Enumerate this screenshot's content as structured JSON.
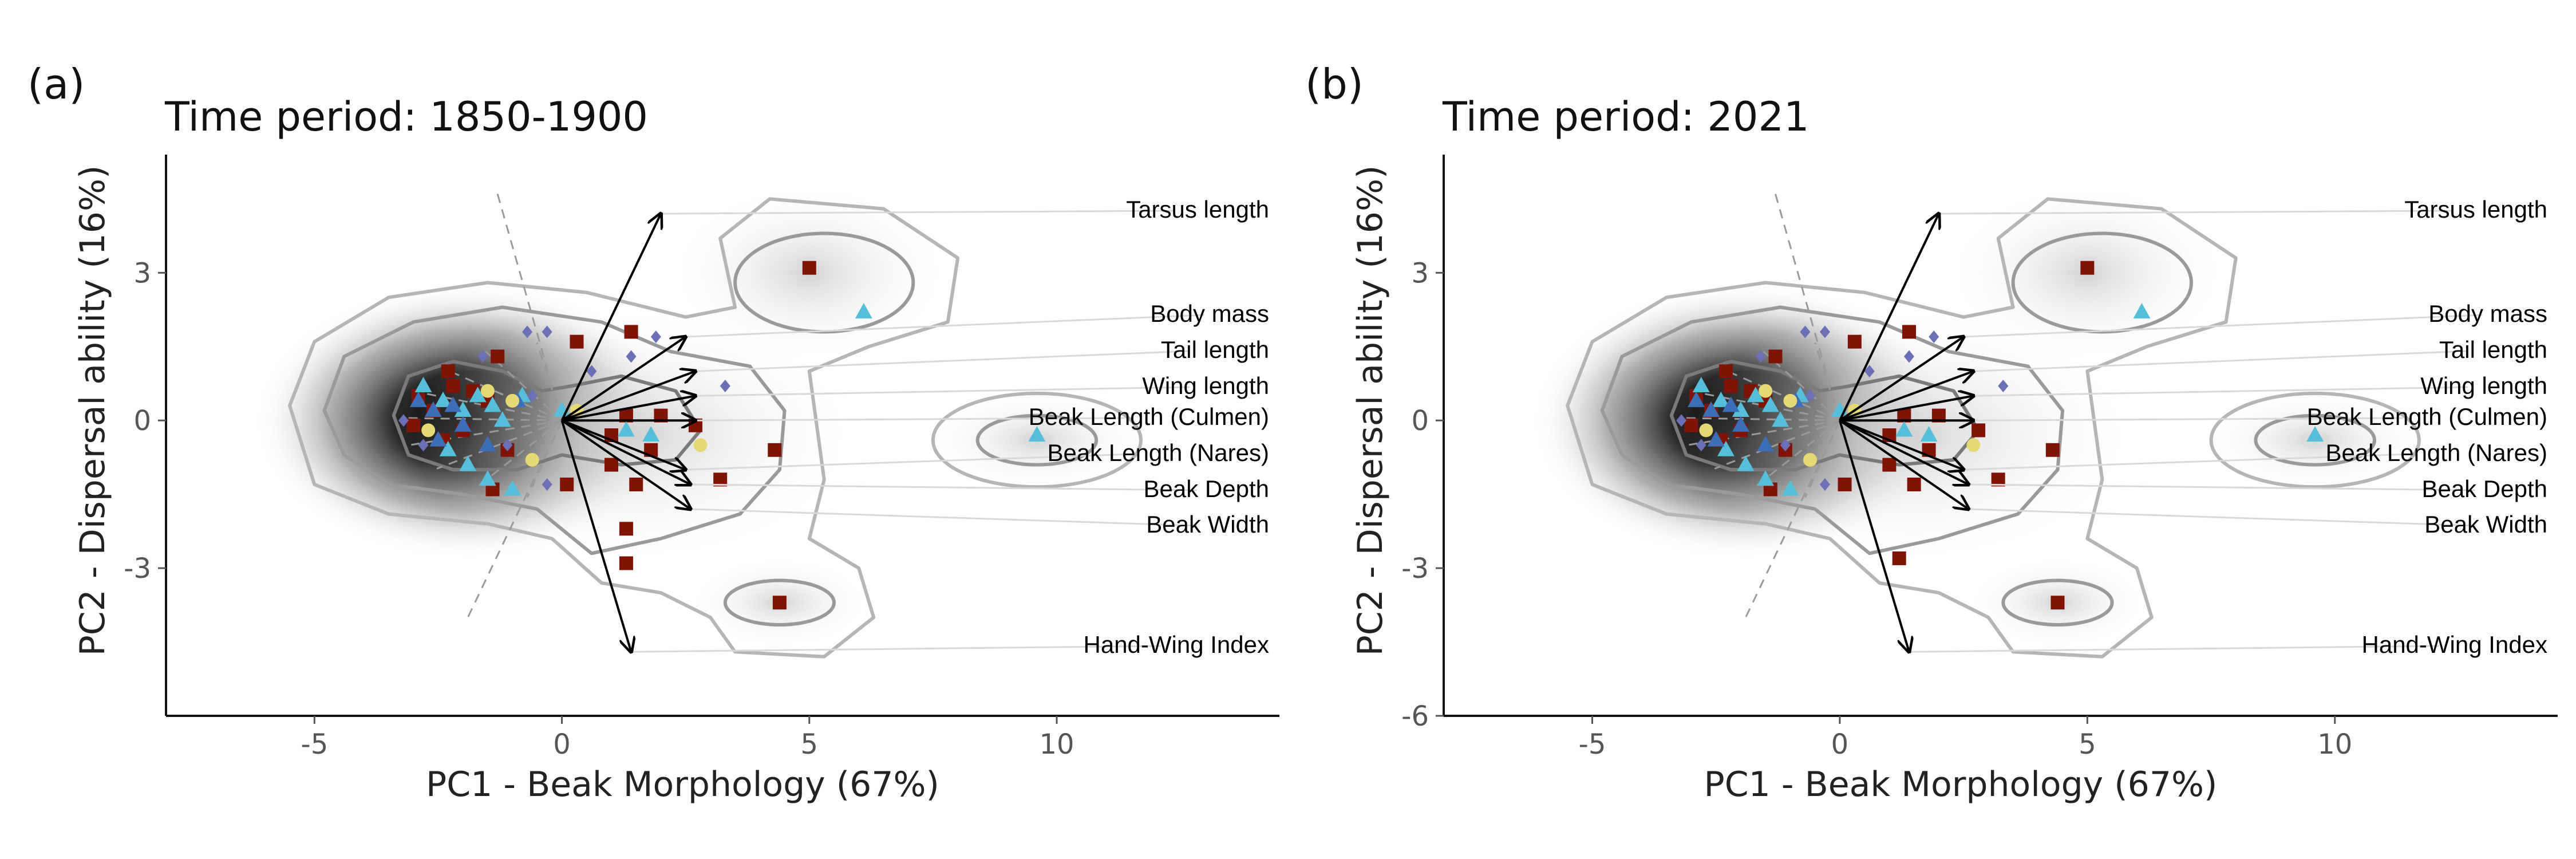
{
  "chart_data": [
    {
      "type": "scatter",
      "panel_label": "(a)",
      "title": "Time period: 1850-1900",
      "xlabel": "PC1 - Beak Morphology (67%)",
      "ylabel": "PC2 - Dispersal ability (16%)",
      "xticks": [
        -5,
        0,
        5,
        10
      ],
      "yticks": [
        -3,
        0,
        3
      ],
      "xlim": [
        -8,
        14.5
      ],
      "ylim": [
        -6,
        5.4
      ],
      "grid": false,
      "loadings": [
        {
          "name": "Tarsus length",
          "x": 2.0,
          "y": 4.2
        },
        {
          "name": "Body mass",
          "x": 2.5,
          "y": 1.7
        },
        {
          "name": "Tail length",
          "x": 2.7,
          "y": 1.0
        },
        {
          "name": "Wing length",
          "x": 2.7,
          "y": 0.5
        },
        {
          "name": "Beak Length (Culmen)",
          "x": 2.7,
          "y": 0.0
        },
        {
          "name": "Beak Length (Nares)",
          "x": 2.5,
          "y": -1.0
        },
        {
          "name": "Beak Depth",
          "x": 2.6,
          "y": -1.3
        },
        {
          "name": "Beak Width",
          "x": 2.6,
          "y": -1.8
        },
        {
          "name": "Hand-Wing Index",
          "x": 1.4,
          "y": -4.7
        }
      ],
      "series": [
        {
          "marker": "square",
          "color": "#7f1406",
          "points": [
            [
              5.0,
              3.1
            ],
            [
              -1.3,
              1.3
            ],
            [
              0.3,
              1.6
            ],
            [
              1.4,
              1.8
            ],
            [
              -2.3,
              1.0
            ],
            [
              -2.9,
              0.5
            ],
            [
              -2.2,
              0.7
            ],
            [
              -1.8,
              0.6
            ],
            [
              -1.5,
              0.4
            ],
            [
              -2.6,
              0.2
            ],
            [
              -3.0,
              -0.1
            ],
            [
              -2.4,
              -0.4
            ],
            [
              -2.0,
              -0.2
            ],
            [
              -1.1,
              -0.6
            ],
            [
              -1.4,
              -1.4
            ],
            [
              0.1,
              -1.3
            ],
            [
              1.3,
              0.1
            ],
            [
              2.0,
              0.1
            ],
            [
              2.7,
              -0.1
            ],
            [
              1.0,
              -0.3
            ],
            [
              1.8,
              -0.6
            ],
            [
              1.0,
              -0.9
            ],
            [
              1.5,
              -1.3
            ],
            [
              3.2,
              -1.2
            ],
            [
              4.3,
              -0.6
            ],
            [
              1.3,
              -2.2
            ],
            [
              1.3,
              -2.9
            ],
            [
              4.4,
              -3.7
            ]
          ]
        },
        {
          "marker": "triangle",
          "color": "#55bfd9",
          "points": [
            [
              6.1,
              2.2
            ],
            [
              9.6,
              -0.3
            ],
            [
              -2.8,
              0.7
            ],
            [
              -2.4,
              0.4
            ],
            [
              -2.0,
              0.2
            ],
            [
              -1.7,
              0.5
            ],
            [
              -1.4,
              0.3
            ],
            [
              -0.8,
              0.5
            ],
            [
              -1.2,
              0.0
            ],
            [
              -2.3,
              -0.6
            ],
            [
              -1.9,
              -0.9
            ],
            [
              -1.5,
              -1.2
            ],
            [
              -1.0,
              -1.4
            ],
            [
              0.0,
              0.2
            ],
            [
              1.3,
              -0.2
            ],
            [
              1.8,
              -0.3
            ]
          ]
        },
        {
          "marker": "triangle",
          "color": "#3d6fb8",
          "points": [
            [
              -2.9,
              0.4
            ],
            [
              -2.6,
              0.2
            ],
            [
              -2.2,
              0.3
            ],
            [
              -2.0,
              -0.1
            ],
            [
              -2.5,
              -0.4
            ],
            [
              -1.5,
              -0.5
            ],
            [
              -0.9,
              0.4
            ]
          ]
        },
        {
          "marker": "diamond",
          "color": "#6b6fb5",
          "points": [
            [
              -0.7,
              1.8
            ],
            [
              -0.3,
              1.8
            ],
            [
              1.4,
              1.3
            ],
            [
              1.9,
              1.7
            ],
            [
              -1.6,
              1.3
            ],
            [
              -0.6,
              0.5
            ],
            [
              3.3,
              0.7
            ],
            [
              -3.2,
              0.0
            ],
            [
              -2.8,
              -0.5
            ],
            [
              -0.3,
              -1.3
            ],
            [
              -1.1,
              -0.5
            ],
            [
              0.6,
              1.0
            ]
          ]
        },
        {
          "marker": "circle",
          "color": "#e6d873",
          "points": [
            [
              -1.5,
              0.6
            ],
            [
              -1.0,
              0.4
            ],
            [
              -2.7,
              -0.2
            ],
            [
              -0.6,
              -0.8
            ],
            [
              2.8,
              -0.5
            ],
            [
              0.3,
              0.2
            ]
          ]
        }
      ]
    },
    {
      "type": "scatter",
      "panel_label": "(b)",
      "title": "Time period: 2021",
      "xlabel": "PC1 - Beak Morphology (67%)",
      "ylabel": "PC2 - Dispersal ability (16%)",
      "xticks": [
        -5,
        0,
        5,
        10
      ],
      "yticks": [
        -6,
        -3,
        0,
        3
      ],
      "xlim": [
        -8,
        14.5
      ],
      "ylim": [
        -6,
        5.4
      ],
      "grid": false,
      "loadings": [
        {
          "name": "Tarsus length",
          "x": 2.0,
          "y": 4.2
        },
        {
          "name": "Body mass",
          "x": 2.5,
          "y": 1.7
        },
        {
          "name": "Tail length",
          "x": 2.7,
          "y": 1.0
        },
        {
          "name": "Wing length",
          "x": 2.7,
          "y": 0.5
        },
        {
          "name": "Beak Length (Culmen)",
          "x": 2.7,
          "y": 0.0
        },
        {
          "name": "Beak Length (Nares)",
          "x": 2.5,
          "y": -1.0
        },
        {
          "name": "Beak Depth",
          "x": 2.6,
          "y": -1.3
        },
        {
          "name": "Beak Width",
          "x": 2.6,
          "y": -1.8
        },
        {
          "name": "Hand-Wing Index",
          "x": 1.4,
          "y": -4.7
        }
      ],
      "series": [
        {
          "marker": "square",
          "color": "#7f1406",
          "points": [
            [
              5.0,
              3.1
            ],
            [
              -1.3,
              1.3
            ],
            [
              0.3,
              1.6
            ],
            [
              1.4,
              1.8
            ],
            [
              -2.3,
              1.0
            ],
            [
              -2.9,
              0.5
            ],
            [
              -2.2,
              0.7
            ],
            [
              -1.8,
              0.6
            ],
            [
              -1.5,
              0.4
            ],
            [
              -2.6,
              0.2
            ],
            [
              -3.0,
              -0.1
            ],
            [
              -2.4,
              -0.4
            ],
            [
              -2.0,
              -0.2
            ],
            [
              -1.1,
              -0.6
            ],
            [
              -1.4,
              -1.4
            ],
            [
              0.1,
              -1.3
            ],
            [
              1.3,
              0.1
            ],
            [
              2.0,
              0.1
            ],
            [
              2.8,
              -0.2
            ],
            [
              1.0,
              -0.3
            ],
            [
              1.8,
              -0.6
            ],
            [
              1.0,
              -0.9
            ],
            [
              1.5,
              -1.3
            ],
            [
              3.2,
              -1.2
            ],
            [
              4.3,
              -0.6
            ],
            [
              1.2,
              -2.8
            ],
            [
              4.4,
              -3.7
            ]
          ]
        },
        {
          "marker": "triangle",
          "color": "#55bfd9",
          "points": [
            [
              6.1,
              2.2
            ],
            [
              9.6,
              -0.3
            ],
            [
              -2.8,
              0.7
            ],
            [
              -2.4,
              0.4
            ],
            [
              -2.0,
              0.2
            ],
            [
              -1.7,
              0.5
            ],
            [
              -1.4,
              0.3
            ],
            [
              -0.8,
              0.5
            ],
            [
              -1.2,
              0.0
            ],
            [
              -2.3,
              -0.6
            ],
            [
              -1.9,
              -0.9
            ],
            [
              -1.5,
              -1.2
            ],
            [
              -1.0,
              -1.4
            ],
            [
              0.0,
              0.2
            ],
            [
              1.3,
              -0.2
            ],
            [
              1.8,
              -0.3
            ]
          ]
        },
        {
          "marker": "triangle",
          "color": "#3d6fb8",
          "points": [
            [
              -2.9,
              0.4
            ],
            [
              -2.6,
              0.2
            ],
            [
              -2.2,
              0.3
            ],
            [
              -2.0,
              -0.1
            ],
            [
              -2.5,
              -0.4
            ],
            [
              -1.5,
              -0.5
            ],
            [
              -0.9,
              0.4
            ]
          ]
        },
        {
          "marker": "diamond",
          "color": "#6b6fb5",
          "points": [
            [
              -0.7,
              1.8
            ],
            [
              -0.3,
              1.8
            ],
            [
              1.4,
              1.3
            ],
            [
              1.9,
              1.7
            ],
            [
              -1.6,
              1.3
            ],
            [
              -0.6,
              0.5
            ],
            [
              3.3,
              0.7
            ],
            [
              -3.2,
              0.0
            ],
            [
              -2.8,
              -0.5
            ],
            [
              -0.3,
              -1.3
            ],
            [
              -1.1,
              -0.5
            ],
            [
              0.6,
              1.0
            ]
          ]
        },
        {
          "marker": "circle",
          "color": "#e6d873",
          "points": [
            [
              -1.5,
              0.6
            ],
            [
              -1.0,
              0.4
            ],
            [
              -2.7,
              -0.2
            ],
            [
              -0.6,
              -0.8
            ],
            [
              2.7,
              -0.5
            ],
            [
              0.3,
              0.2
            ]
          ]
        }
      ]
    }
  ]
}
